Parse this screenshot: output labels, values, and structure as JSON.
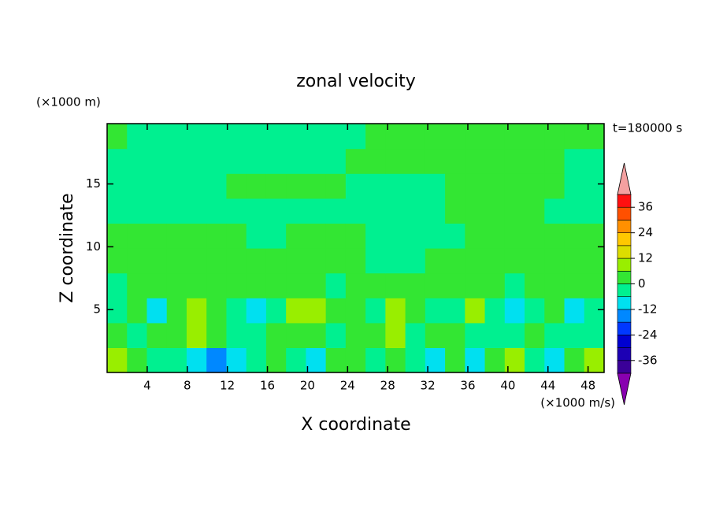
{
  "chart_data": {
    "type": "contour",
    "title": "zonal velocity",
    "x_label": "X coordinate",
    "y_label": "Z coordinate",
    "x_unit": "(×1000 m/s)",
    "y_unit": "(×1000 m)",
    "time_label": "t=180000 s",
    "xlim": [
      0,
      49.6
    ],
    "ylim": [
      0,
      19.8
    ],
    "xticks": [
      4,
      8,
      12,
      16,
      20,
      24,
      28,
      32,
      36,
      40,
      44,
      48
    ],
    "yticks": [
      5,
      10,
      15
    ],
    "values": [
      [
        9,
        3,
        -3,
        -3,
        -9,
        -15,
        -9,
        -3,
        3,
        -3,
        -9,
        3,
        3,
        -3,
        3,
        -3,
        -9,
        3,
        -9,
        3,
        9,
        -3,
        -9,
        3,
        9
      ],
      [
        3,
        -3,
        3,
        3,
        9,
        3,
        -3,
        -3,
        3,
        3,
        3,
        -3,
        3,
        3,
        9,
        -3,
        3,
        3,
        -3,
        -3,
        -3,
        3,
        -3,
        -3,
        -3
      ],
      [
        -3,
        3,
        -9,
        3,
        9,
        3,
        -3,
        -9,
        -3,
        9,
        9,
        3,
        3,
        -3,
        9,
        3,
        -3,
        -3,
        9,
        -3,
        -9,
        -3,
        3,
        -9,
        -3
      ],
      [
        -3,
        3,
        3,
        3,
        3,
        3,
        3,
        3,
        3,
        3,
        3,
        -3,
        3,
        3,
        3,
        3,
        3,
        3,
        3,
        3,
        -3,
        3,
        3,
        3,
        3
      ],
      [
        3,
        3,
        3,
        3,
        3,
        3,
        3,
        3,
        3,
        3,
        3,
        3,
        3,
        -3,
        -3,
        -3,
        3,
        3,
        3,
        3,
        3,
        3,
        3,
        3,
        3
      ],
      [
        3,
        3,
        3,
        3,
        3,
        3,
        3,
        -3,
        -3,
        3,
        3,
        3,
        3,
        -3,
        -3,
        -3,
        -3,
        -3,
        3,
        3,
        3,
        3,
        3,
        3,
        3
      ],
      [
        -3,
        -3,
        -3,
        -3,
        -3,
        -3,
        -3,
        -3,
        -3,
        -3,
        -3,
        -3,
        -3,
        -3,
        -3,
        -3,
        -3,
        3,
        3,
        3,
        3,
        3,
        -3,
        -3,
        -3
      ],
      [
        -3,
        -3,
        -3,
        -3,
        -3,
        -3,
        3,
        3,
        3,
        3,
        3,
        3,
        -3,
        -3,
        -3,
        -3,
        -3,
        3,
        3,
        3,
        3,
        3,
        3,
        -3,
        -3
      ],
      [
        -3,
        -3,
        -3,
        -3,
        -3,
        -3,
        -3,
        -3,
        -3,
        -3,
        -3,
        -3,
        3,
        3,
        3,
        3,
        3,
        3,
        3,
        3,
        3,
        3,
        3,
        -3,
        -3
      ],
      [
        3,
        -3,
        -3,
        -3,
        -3,
        -3,
        -3,
        -3,
        -3,
        -3,
        -3,
        -3,
        -3,
        3,
        3,
        3,
        3,
        3,
        3,
        3,
        3,
        3,
        3,
        3,
        3
      ]
    ],
    "colorbar": {
      "levels": [
        -42,
        -36,
        -30,
        -24,
        -18,
        -12,
        -6,
        0,
        6,
        12,
        18,
        24,
        30,
        36,
        42
      ],
      "colors": [
        "#3a0098",
        "#1c00b4",
        "#0000d0",
        "#0038ff",
        "#0088ff",
        "#00e0f0",
        "#00f090",
        "#33e633",
        "#99ee00",
        "#dddd00",
        "#ffc800",
        "#ff9000",
        "#ff5000",
        "#ff1010"
      ],
      "under_color": "#8800b0",
      "over_color": "#f4a0a0",
      "ticks": [
        -36,
        -24,
        -12,
        0,
        12,
        24,
        36
      ]
    }
  }
}
